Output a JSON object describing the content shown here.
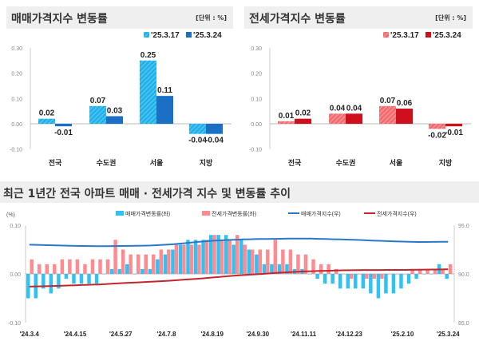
{
  "chart_data": [
    {
      "type": "bar",
      "title": "매매가격지수 변동률",
      "unit": "[단위 : %]",
      "categories": [
        "전국",
        "수도권",
        "서울",
        "지방"
      ],
      "series": [
        {
          "name": "'25.3.17",
          "values": [
            0.02,
            0.07,
            0.25,
            -0.04
          ],
          "color": "#1fb2ea",
          "hatched": true
        },
        {
          "name": "'25.3.24",
          "values": [
            -0.01,
            0.03,
            0.11,
            -0.04
          ],
          "color": "#1b6fc4"
        }
      ],
      "ylim": [
        -0.1,
        0.3
      ],
      "yticks": [
        "0.30",
        "0.20",
        "0.10",
        "0.00",
        "-0.10"
      ],
      "legend": "top-right"
    },
    {
      "type": "bar",
      "title": "전세가격지수 변동률",
      "unit": "[단위 : %]",
      "categories": [
        "전국",
        "수도권",
        "서울",
        "지방"
      ],
      "series": [
        {
          "name": "'25.3.17",
          "values": [
            0.01,
            0.04,
            0.07,
            -0.02
          ],
          "color": "#f26b6e",
          "hatched": true
        },
        {
          "name": "'25.3.24",
          "values": [
            0.02,
            0.04,
            0.06,
            -0.01
          ],
          "color": "#cf0f1c"
        }
      ],
      "ylim": [
        -0.1,
        0.3
      ],
      "yticks": [
        "0.30",
        "0.20",
        "0.10",
        "0.00",
        "-0.10"
      ],
      "legend": "top-right"
    },
    {
      "type": "bar+line",
      "title": "최근 1년간 전국 아파트 매매 · 전세가격 지수 및 변동률 추이",
      "ylabel": "(%)",
      "ylim": [
        -0.1,
        0.1
      ],
      "yticks": [
        "0.10",
        "0.00",
        "-0.10"
      ],
      "y2lim": [
        85.0,
        95.0
      ],
      "y2ticks": [
        "95.0",
        "90.0",
        "85.0"
      ],
      "xticks": [
        "'24.3.4",
        "'24.4.15",
        "'24.5.27",
        "'24.7.8",
        "'24.8.19",
        "'24.9.30",
        "'24.11.11",
        "'24.12.23",
        "'25.2.10",
        "'25.3.24"
      ],
      "xtick_index": [
        0,
        6,
        12,
        18,
        24,
        30,
        36,
        42,
        49,
        55
      ],
      "series": [
        {
          "name": "매매가격변동률(좌)",
          "kind": "bar",
          "axis": "left",
          "color": "#2ec3f5",
          "values": [
            -0.05,
            -0.05,
            -0.03,
            -0.04,
            -0.03,
            -0.01,
            -0.02,
            -0.02,
            -0.02,
            -0.02,
            0.0,
            0.01,
            0.01,
            0.02,
            0.0,
            0.01,
            0.01,
            0.03,
            0.04,
            0.05,
            0.06,
            0.07,
            0.07,
            0.07,
            0.08,
            0.08,
            0.08,
            0.06,
            0.07,
            0.05,
            0.04,
            0.02,
            0.02,
            0.02,
            0.02,
            0.01,
            0.01,
            0.0,
            -0.01,
            -0.02,
            -0.02,
            -0.03,
            -0.03,
            -0.03,
            -0.03,
            -0.04,
            -0.05,
            -0.04,
            -0.04,
            -0.03,
            -0.02,
            -0.01,
            0.0,
            0.0,
            0.02,
            -0.01
          ]
        },
        {
          "name": "전세가격변동률(좌)",
          "kind": "bar",
          "axis": "left",
          "color": "#ff8a8f",
          "values": [
            0.03,
            0.02,
            0.02,
            0.02,
            0.03,
            0.03,
            0.03,
            0.02,
            0.03,
            0.03,
            0.03,
            0.07,
            0.05,
            0.04,
            0.04,
            0.04,
            0.04,
            0.05,
            0.05,
            0.06,
            0.06,
            0.06,
            0.06,
            0.07,
            0.08,
            0.07,
            0.07,
            0.08,
            0.06,
            0.05,
            0.05,
            0.05,
            0.07,
            0.05,
            0.05,
            0.04,
            0.04,
            0.03,
            0.02,
            0.02,
            0.01,
            0.0,
            -0.01,
            0.0,
            -0.01,
            -0.01,
            -0.01,
            0.0,
            0.0,
            0.0,
            0.01,
            0.01,
            0.01,
            0.01,
            0.01,
            0.02
          ]
        },
        {
          "name": "매매가격지수(우)",
          "kind": "line",
          "axis": "right",
          "color": "#2a78c8",
          "values": [
            93.0,
            92.98,
            92.96,
            92.94,
            92.92,
            92.9,
            92.88,
            92.87,
            92.86,
            92.85,
            92.85,
            92.86,
            92.87,
            92.88,
            92.89,
            92.9,
            92.92,
            92.96,
            93.0,
            93.06,
            93.12,
            93.2,
            93.28,
            93.34,
            93.4,
            93.44,
            93.48,
            93.51,
            93.54,
            93.56,
            93.58,
            93.59,
            93.6,
            93.61,
            93.62,
            93.63,
            93.63,
            93.62,
            93.6,
            93.58,
            93.56,
            93.54,
            93.52,
            93.49,
            93.46,
            93.43,
            93.4,
            93.37,
            93.34,
            93.32,
            93.3,
            93.28,
            93.28,
            93.29,
            93.3,
            93.3
          ]
        },
        {
          "name": "전세가격지수(우)",
          "kind": "line",
          "axis": "right",
          "color": "#c1272d",
          "values": [
            88.7,
            88.72,
            88.74,
            88.76,
            88.78,
            88.81,
            88.84,
            88.86,
            88.89,
            88.92,
            88.95,
            89.01,
            89.05,
            89.09,
            89.12,
            89.16,
            89.2,
            89.24,
            89.29,
            89.34,
            89.39,
            89.45,
            89.5,
            89.56,
            89.63,
            89.7,
            89.76,
            89.83,
            89.88,
            89.93,
            89.97,
            90.02,
            90.08,
            90.13,
            90.17,
            90.21,
            90.25,
            90.28,
            90.3,
            90.32,
            90.35,
            90.37,
            90.38,
            90.39,
            90.4,
            90.4,
            90.4,
            90.41,
            90.41,
            90.41,
            90.42,
            90.43,
            90.44,
            90.45,
            90.46,
            90.48
          ]
        }
      ],
      "legend": "top"
    }
  ]
}
